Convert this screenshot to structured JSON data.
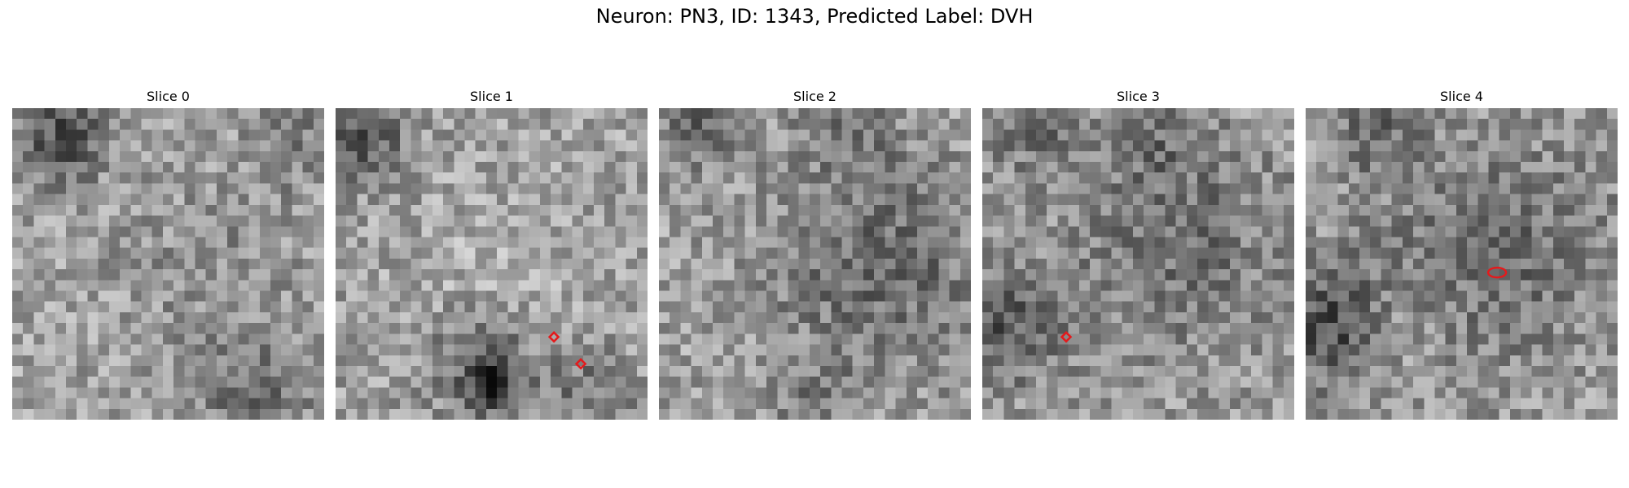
{
  "figure": {
    "title": "Neuron: PN3, ID: 1343, Predicted Label: DVH"
  },
  "slices": [
    {
      "title": "Slice 0",
      "seed": 11,
      "markers": []
    },
    {
      "title": "Slice 1",
      "seed": 23,
      "markers": [
        {
          "shape": "diamond",
          "row": 21.3,
          "col": 20.3
        },
        {
          "shape": "diamond",
          "row": 23.8,
          "col": 22.8
        }
      ]
    },
    {
      "title": "Slice 2",
      "seed": 37,
      "markers": []
    },
    {
      "title": "Slice 3",
      "seed": 51,
      "markers": [
        {
          "shape": "diamond",
          "row": 21.3,
          "col": 7.8
        }
      ]
    },
    {
      "title": "Slice 4",
      "seed": 67,
      "markers": [
        {
          "shape": "ellipse",
          "row": 15.3,
          "col": 17.8
        }
      ]
    }
  ],
  "grid_size": 29,
  "marker_color": "#e41a1c",
  "colormap": "grayscale"
}
